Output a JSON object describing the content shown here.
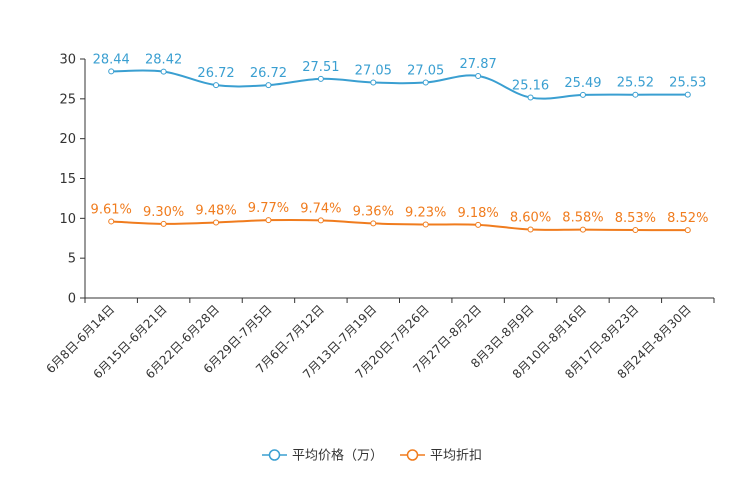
{
  "chart_data": {
    "type": "line",
    "title": "",
    "xlabel": "",
    "ylabel": "",
    "ylim": [
      0,
      30
    ],
    "yticks": [
      0,
      5,
      10,
      15,
      20,
      25,
      30
    ],
    "grid": false,
    "legend_position": "bottom-center",
    "categories": [
      "6月8日-6月14日",
      "6月15日-6月21日",
      "6月22日-6月28日",
      "6月29日-7月5日",
      "7月6日-7月12日",
      "7月13日-7月19日",
      "7月20日-7月26日",
      "7月27日-8月2日",
      "8月3日-8月9日",
      "8月10日-8月16日",
      "8月17日-8月23日",
      "8月24日-8月30日"
    ],
    "series": [
      {
        "name": "平均价格（万）",
        "color": "#3a9fd1",
        "values": [
          28.44,
          28.42,
          26.72,
          26.72,
          27.51,
          27.05,
          27.05,
          27.87,
          25.16,
          25.49,
          25.52,
          25.53
        ],
        "labels": [
          "28.44",
          "28.42",
          "26.72",
          "26.72",
          "27.51",
          "27.05",
          "27.05",
          "27.87",
          "25.16",
          "25.49",
          "25.52",
          "25.53"
        ]
      },
      {
        "name": "平均折扣",
        "color": "#f07c1e",
        "values": [
          9.61,
          9.3,
          9.48,
          9.77,
          9.74,
          9.36,
          9.23,
          9.18,
          8.6,
          8.58,
          8.53,
          8.52
        ],
        "labels": [
          "9.61%",
          "9.30%",
          "9.48%",
          "9.77%",
          "9.74%",
          "9.36%",
          "9.23%",
          "9.18%",
          "8.60%",
          "8.58%",
          "8.53%",
          "8.52%"
        ]
      }
    ]
  }
}
